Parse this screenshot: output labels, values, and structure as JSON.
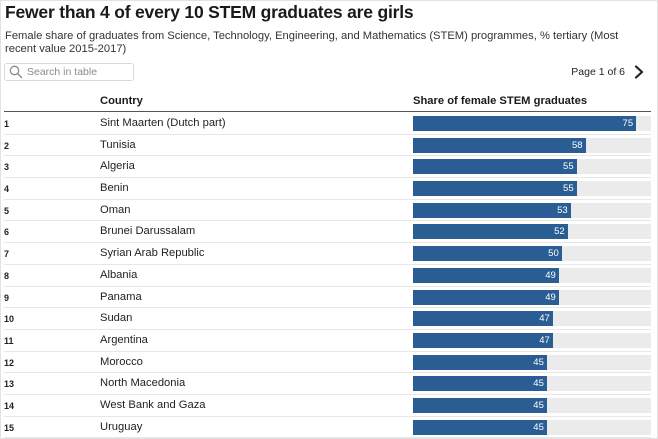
{
  "header": {
    "title": "Fewer than 4 of every 10 STEM graduates are girls",
    "subtitle": "Female share of graduates from Science, Technology, Engineering, and Mathematics (STEM) programmes, % tertiary (Most recent value 2015-2017)"
  },
  "search": {
    "placeholder": "Search in table",
    "icon": "search-icon"
  },
  "pager": {
    "label": "Page 1 of 6",
    "icon": "chevron-right-icon"
  },
  "columns": {
    "country": "Country",
    "share": "Share of female STEM graduates"
  },
  "colors": {
    "bar": "#2a5d93",
    "track": "#ebebeb"
  },
  "chart_data": {
    "type": "table",
    "bar_max": 80,
    "rows": [
      {
        "rank": "1",
        "country": "Sint Maarten (Dutch part)",
        "value": 75
      },
      {
        "rank": "2",
        "country": "Tunisia",
        "value": 58
      },
      {
        "rank": "3",
        "country": "Algeria",
        "value": 55
      },
      {
        "rank": "4",
        "country": "Benin",
        "value": 55
      },
      {
        "rank": "5",
        "country": "Oman",
        "value": 53
      },
      {
        "rank": "6",
        "country": "Brunei Darussalam",
        "value": 52
      },
      {
        "rank": "7",
        "country": "Syrian Arab Republic",
        "value": 50
      },
      {
        "rank": "8",
        "country": "Albania",
        "value": 49
      },
      {
        "rank": "9",
        "country": "Panama",
        "value": 49
      },
      {
        "rank": "10",
        "country": "Sudan",
        "value": 47
      },
      {
        "rank": "11",
        "country": "Argentina",
        "value": 47
      },
      {
        "rank": "12",
        "country": "Morocco",
        "value": 45
      },
      {
        "rank": "13",
        "country": "North Macedonia",
        "value": 45
      },
      {
        "rank": "14",
        "country": "West Bank and Gaza",
        "value": 45
      },
      {
        "rank": "15",
        "country": "Uruguay",
        "value": 45
      }
    ]
  }
}
